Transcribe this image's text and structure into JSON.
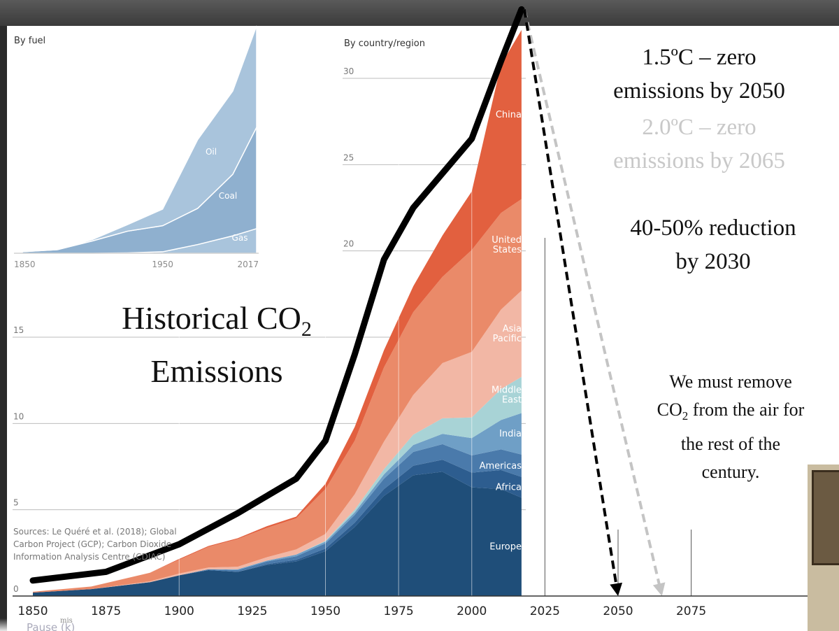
{
  "main_chart": {
    "panel_label": "By country/region",
    "y_ticks": [
      0,
      5,
      10,
      15,
      20,
      25,
      30
    ],
    "x_labels": [
      "1850",
      "1875",
      "1900",
      "1925",
      "1950",
      "1975",
      "2000",
      "2025",
      "2050",
      "2075"
    ],
    "sources": [
      "Sources: Le Quéré et al. (2018); Global",
      "Carbon Project (GCP); Carbon Dioxide",
      "Information Analysis Centre (CDIAC)"
    ]
  },
  "inset": {
    "panel_label": "By fuel",
    "x_labels": [
      "1850",
      "1950",
      "2017"
    ],
    "series_labels": [
      "Oil",
      "Coal",
      "Gas"
    ]
  },
  "region_labels": [
    {
      "key": "China",
      "lines": [
        "China"
      ]
    },
    {
      "key": "United States",
      "lines": [
        "United",
        "States"
      ]
    },
    {
      "key": "Asia Pacific",
      "lines": [
        "Asia",
        "Pacific"
      ]
    },
    {
      "key": "Middle East",
      "lines": [
        "Middle",
        "East"
      ]
    },
    {
      "key": "India",
      "lines": [
        "India"
      ]
    },
    {
      "key": "Americas",
      "lines": [
        "Americas"
      ]
    },
    {
      "key": "Africa",
      "lines": [
        "Africa"
      ]
    },
    {
      "key": "Europe",
      "lines": [
        "Europe"
      ]
    }
  ],
  "overlay": {
    "title_line1": "Historical CO",
    "title_sub": "2",
    "title_line2": "Emissions",
    "target_15_line1": "1.5ºC – zero",
    "target_15_line2": "emissions by 2050",
    "target_20_line1": "2.0ºC – zero",
    "target_20_line2": "emissions by 2065",
    "reduction_line1": "40-50% reduction",
    "reduction_line2": "by 2030",
    "removal_line1": "We must remove",
    "removal_line2_a": "CO",
    "removal_line2_sub": "2",
    "removal_line2_b": " from the air for",
    "removal_line3": "the rest of the",
    "removal_line4": "century."
  },
  "colors": {
    "Europe": "#1f4e79",
    "Africa": "#2d5d8f",
    "Americas": "#4a7aab",
    "India": "#6f9fc6",
    "Middle East": "#a8d3d6",
    "Asia Pacific": "#f2b7a5",
    "United States": "#ea8a69",
    "China": "#e2603f",
    "inset_fill": "#a9c4dc",
    "inset_dark": "#8fb0cf"
  },
  "bottom": {
    "pause": "Pause (k)",
    "mis": "mis"
  },
  "chart_data": [
    {
      "type": "area",
      "title": "By country/region",
      "xlabel": "",
      "ylabel": "",
      "ylim": [
        0,
        33
      ],
      "x": [
        1850,
        1870,
        1890,
        1900,
        1910,
        1920,
        1930,
        1940,
        1950,
        1960,
        1970,
        1980,
        1990,
        2000,
        2010,
        2017
      ],
      "series": [
        {
          "name": "Europe",
          "values": [
            0.2,
            0.4,
            0.8,
            1.2,
            1.5,
            1.4,
            1.8,
            2.0,
            2.6,
            4.0,
            5.8,
            7.0,
            7.2,
            6.3,
            6.2,
            5.7
          ]
        },
        {
          "name": "Africa",
          "values": [
            0.0,
            0.0,
            0.0,
            0.0,
            0.0,
            0.0,
            0.05,
            0.1,
            0.15,
            0.25,
            0.4,
            0.55,
            0.7,
            0.85,
            1.1,
            1.2
          ]
        },
        {
          "name": "Americas",
          "values": [
            0.0,
            0.0,
            0.0,
            0.0,
            0.05,
            0.1,
            0.15,
            0.2,
            0.3,
            0.45,
            0.6,
            0.8,
            0.9,
            1.0,
            1.2,
            1.3
          ]
        },
        {
          "name": "India",
          "values": [
            0.0,
            0.0,
            0.0,
            0.0,
            0.0,
            0.05,
            0.05,
            0.1,
            0.1,
            0.15,
            0.25,
            0.4,
            0.6,
            1.0,
            1.7,
            2.4
          ]
        },
        {
          "name": "Middle East",
          "values": [
            0.0,
            0.0,
            0.0,
            0.0,
            0.0,
            0.0,
            0.0,
            0.0,
            0.05,
            0.15,
            0.3,
            0.6,
            0.9,
            1.2,
            1.8,
            2.1
          ]
        },
        {
          "name": "Asia Pacific",
          "values": [
            0.0,
            0.0,
            0.05,
            0.1,
            0.1,
            0.15,
            0.2,
            0.3,
            0.4,
            0.9,
            1.6,
            2.3,
            3.2,
            3.8,
            4.6,
            5.0
          ]
        },
        {
          "name": "United States",
          "values": [
            0.05,
            0.15,
            0.5,
            0.8,
            1.2,
            1.6,
            1.7,
            1.8,
            2.6,
            3.1,
            4.3,
            4.8,
            5.0,
            5.9,
            5.6,
            5.3
          ]
        },
        {
          "name": "China",
          "values": [
            0.0,
            0.0,
            0.0,
            0.05,
            0.05,
            0.05,
            0.1,
            0.1,
            0.3,
            0.8,
            1.0,
            1.5,
            2.4,
            3.4,
            8.6,
            9.8
          ]
        }
      ]
    },
    {
      "type": "area",
      "title": "By fuel",
      "xlabel": "",
      "ylabel": "",
      "x": [
        1850,
        1875,
        1900,
        1925,
        1950,
        1975,
        2000,
        2017
      ],
      "series": [
        {
          "name": "Gas",
          "values": [
            0.0,
            0.0,
            0.0,
            0.05,
            0.2,
            1.2,
            2.4,
            3.4
          ]
        },
        {
          "name": "Coal",
          "values": [
            0.2,
            0.5,
            1.7,
            3.0,
            3.6,
            5.0,
            8.5,
            14.0
          ]
        },
        {
          "name": "Oil",
          "values": [
            0.0,
            0.0,
            0.2,
            0.9,
            2.3,
            9.5,
            11.5,
            14.0
          ]
        }
      ]
    },
    {
      "type": "line",
      "title": "Historical CO2 Emissions trend",
      "x": [
        1850,
        1875,
        1900,
        1920,
        1940,
        1950,
        1960,
        1970,
        1980,
        1990,
        2000,
        2010,
        2017
      ],
      "values": [
        0.9,
        1.4,
        3.0,
        4.8,
        6.8,
        9.0,
        14.0,
        19.5,
        22.5,
        24.5,
        26.5,
        31.0,
        34.0
      ]
    },
    {
      "type": "line",
      "title": "1.5ºC path",
      "x": [
        2018,
        2050
      ],
      "values": [
        34,
        0
      ]
    },
    {
      "type": "line",
      "title": "2.0ºC path",
      "x": [
        2018,
        2065
      ],
      "values": [
        34,
        0
      ]
    }
  ]
}
